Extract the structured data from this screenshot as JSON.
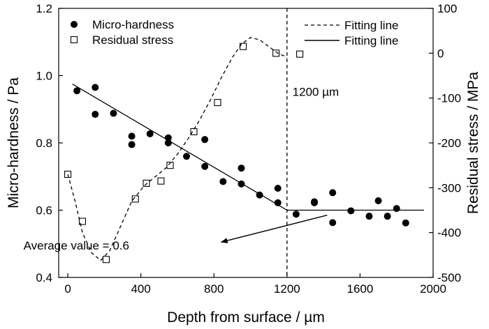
{
  "chart_data": {
    "type": "scatter",
    "xlabel": "Depth from surface / µm",
    "ylabel": "Micro-hardness / Pa",
    "y2label": "Residual stress / MPa",
    "xlim": [
      -50,
      2000
    ],
    "ylim": [
      0.4,
      1.2
    ],
    "y2lim": [
      -500,
      100
    ],
    "xticks": [
      0,
      400,
      800,
      1200,
      1600,
      2000
    ],
    "xtick_labels": [
      "0",
      "400",
      "800",
      "1200",
      "1600",
      "2000"
    ],
    "yticks": [
      0.4,
      0.6,
      0.8,
      1.0,
      1.2
    ],
    "ytick_labels": [
      "0.4",
      "0.6",
      "0.8",
      "1.0",
      "1.2"
    ],
    "y2ticks": [
      -500,
      -400,
      -300,
      -200,
      -100,
      0,
      100
    ],
    "y2tick_labels": [
      "-500",
      "-400",
      "-300",
      "-200",
      "-100",
      "0",
      "100"
    ],
    "legend": [
      {
        "label": "Micro-hardness",
        "marker": "filled-circle"
      },
      {
        "label": "Residual stress",
        "marker": "open-square"
      },
      {
        "label": "Fitting line",
        "line": "dashed"
      },
      {
        "label": "Fitting line",
        "line": "solid"
      }
    ],
    "series": [
      {
        "name": "Micro-hardness",
        "axis": "left",
        "marker": "filled-circle",
        "x": [
          50,
          150,
          150,
          250,
          350,
          350,
          450,
          550,
          550,
          650,
          750,
          750,
          850,
          950,
          950,
          1050,
          1150,
          1150,
          1250,
          1350,
          1350,
          1450,
          1450,
          1550,
          1650,
          1700,
          1750,
          1800,
          1850
        ],
        "y": [
          0.955,
          0.965,
          0.885,
          0.888,
          0.82,
          0.795,
          0.827,
          0.815,
          0.8,
          0.76,
          0.81,
          0.73,
          0.685,
          0.725,
          0.678,
          0.645,
          0.665,
          0.622,
          0.588,
          0.625,
          0.622,
          0.652,
          0.563,
          0.598,
          0.582,
          0.628,
          0.582,
          0.605,
          0.562
        ]
      },
      {
        "name": "Residual stress",
        "axis": "right",
        "marker": "open-square",
        "x": [
          0,
          80,
          210,
          370,
          430,
          510,
          560,
          690,
          820,
          960,
          1140,
          1270
        ],
        "y": [
          -270,
          -375,
          -460,
          -325,
          -290,
          -285,
          -250,
          -175,
          -110,
          15,
          0,
          -2
        ]
      },
      {
        "name": "Fitting line (residual stress)",
        "axis": "right",
        "line": "dashed",
        "x": [
          0,
          40,
          80,
          130,
          180,
          230,
          290,
          350,
          420,
          480,
          540,
          600,
          660,
          720,
          780,
          840,
          900,
          950,
          1000,
          1050,
          1100,
          1150,
          1190,
          1200
        ],
        "y": [
          -270,
          -330,
          -400,
          -445,
          -462,
          -440,
          -385,
          -330,
          -295,
          -275,
          -255,
          -225,
          -190,
          -150,
          -105,
          -55,
          -10,
          20,
          35,
          30,
          15,
          0,
          -7,
          -10
        ]
      },
      {
        "name": "Fitting line (micro-hardness)",
        "axis": "left",
        "line": "solid",
        "x": [
          25,
          1200,
          1950
        ],
        "y": [
          0.975,
          0.6,
          0.6
        ]
      }
    ],
    "annotations": [
      {
        "text": "1200 µm",
        "vline_x": 1200,
        "label_x": 1230,
        "label_y": 0.94
      },
      {
        "text": "Average value = 0.6",
        "arrow_from": [
          1420,
          0.585
        ],
        "arrow_to": [
          840,
          0.505
        ],
        "label_x": 350,
        "label_y": 0.5
      }
    ]
  }
}
